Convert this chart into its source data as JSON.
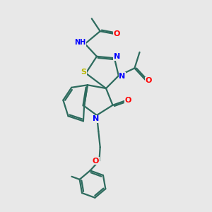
{
  "bg_color": "#e8e8e8",
  "bond_color": "#2d6b5e",
  "N_color": "#0000ff",
  "O_color": "#ff0000",
  "S_color": "#b8b800",
  "line_width": 1.6,
  "figsize": [
    3.0,
    3.0
  ],
  "dpi": 100,
  "xlim": [
    -4.5,
    5.5
  ],
  "ylim": [
    -7.0,
    5.5
  ]
}
